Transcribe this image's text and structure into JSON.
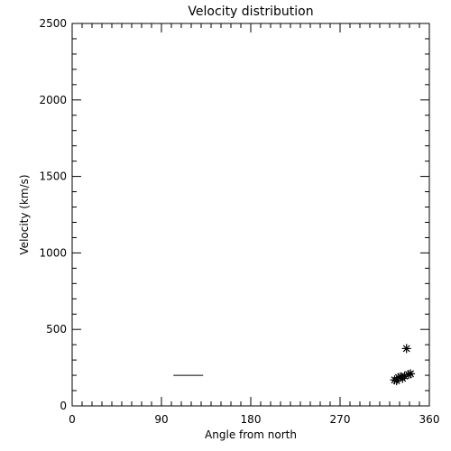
{
  "chart_data": {
    "type": "scatter",
    "title": "Velocity distribution",
    "xlabel": "Angle from north",
    "ylabel": "Velocity (km/s)",
    "xlim": [
      0,
      360
    ],
    "ylim": [
      0,
      2500
    ],
    "xticks": [
      0,
      90,
      180,
      270,
      360
    ],
    "yticks": [
      0,
      500,
      1000,
      1500,
      2000,
      2500
    ],
    "x_minor_step": 10,
    "y_minor_step": 100,
    "grid": false,
    "marker": "asterisk",
    "points": [
      {
        "x": 325,
        "y": 170
      },
      {
        "x": 327,
        "y": 165
      },
      {
        "x": 329,
        "y": 185
      },
      {
        "x": 331,
        "y": 190
      },
      {
        "x": 333,
        "y": 180
      },
      {
        "x": 335,
        "y": 195
      },
      {
        "x": 337,
        "y": 375
      },
      {
        "x": 339,
        "y": 205
      },
      {
        "x": 341,
        "y": 210
      }
    ],
    "segments": [
      {
        "x": [
          102,
          132
        ],
        "y": [
          200,
          200
        ]
      }
    ]
  }
}
